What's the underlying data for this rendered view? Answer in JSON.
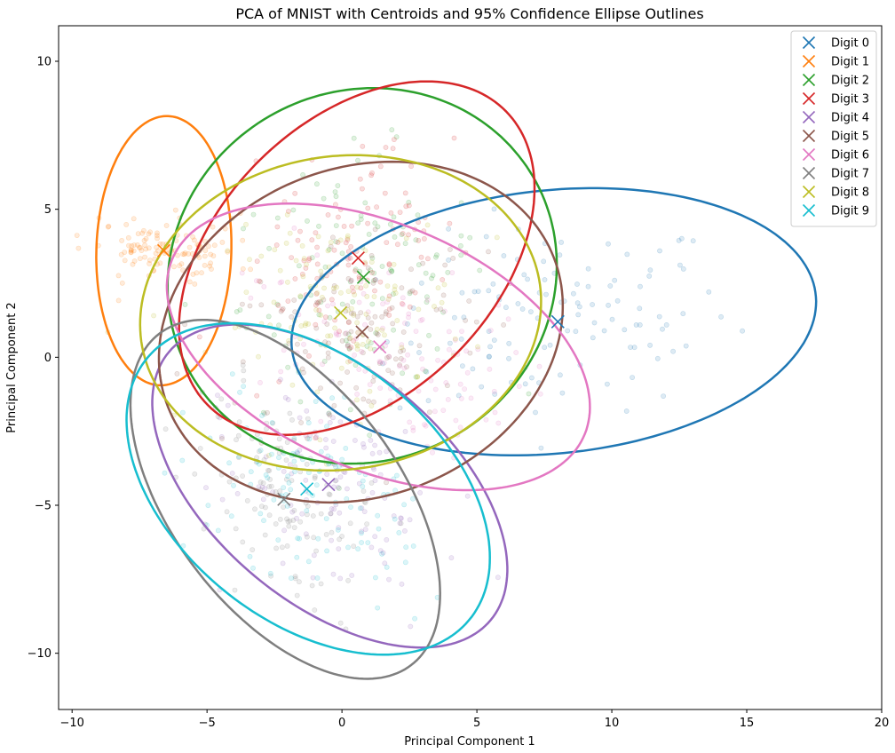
{
  "chart_data": {
    "type": "scatter",
    "title": "PCA of MNIST with Centroids and 95% Confidence Ellipse Outlines",
    "xlabel": "Principal Component 1",
    "ylabel": "Principal Component 2",
    "xlim": [
      -10.5,
      20
    ],
    "ylim": [
      -11.9,
      11.2
    ],
    "xticks": [
      -10,
      -5,
      0,
      5,
      10,
      15,
      20
    ],
    "yticks": [
      -10,
      -5,
      0,
      5,
      10
    ],
    "tick_labels_x": [
      "−10",
      "−5",
      "0",
      "5",
      "10",
      "15",
      "20"
    ],
    "tick_labels_y": [
      "−10",
      "−5",
      "0",
      "5",
      "10"
    ],
    "grid": false,
    "legend_position": "top-right",
    "series": [
      {
        "name": "Digit 0",
        "color": "#1f77b4",
        "centroid": [
          8.0,
          1.2
        ],
        "ellipse": {
          "center": [
            7.85,
            1.2
          ],
          "semi_major": 9.75,
          "semi_minor": 4.45,
          "angle_deg": 5
        },
        "spread": [
          3.2,
          1.6
        ]
      },
      {
        "name": "Digit 1",
        "color": "#ff7f0e",
        "centroid": [
          -6.6,
          3.6
        ],
        "ellipse": {
          "center": [
            -6.6,
            3.6
          ],
          "semi_major": 4.55,
          "semi_minor": 2.5,
          "angle_deg": 88
        },
        "spread": [
          0.5,
          1.4
        ]
      },
      {
        "name": "Digit 2",
        "color": "#2ca02c",
        "centroid": [
          0.8,
          2.7
        ],
        "ellipse": {
          "center": [
            0.75,
            2.75
          ],
          "semi_major": 7.25,
          "semi_minor": 6.3,
          "angle_deg": 12
        },
        "spread": [
          2.3,
          2.0
        ]
      },
      {
        "name": "Digit 3",
        "color": "#d62728",
        "centroid": [
          0.6,
          3.35
        ],
        "ellipse": {
          "center": [
            0.55,
            3.35
          ],
          "semi_major": 7.45,
          "semi_minor": 4.85,
          "angle_deg": 38
        },
        "spread": [
          2.2,
          1.5
        ]
      },
      {
        "name": "Digit 4",
        "color": "#9467bd",
        "centroid": [
          -0.5,
          -4.3
        ],
        "ellipse": {
          "center": [
            -0.45,
            -4.35
          ],
          "semi_major": 7.5,
          "semi_minor": 4.1,
          "angle_deg": -35
        },
        "spread": [
          2.2,
          1.3
        ]
      },
      {
        "name": "Digit 5",
        "color": "#8c564b",
        "centroid": [
          0.75,
          0.85
        ],
        "ellipse": {
          "center": [
            0.7,
            0.85
          ],
          "semi_major": 7.6,
          "semi_minor": 5.6,
          "angle_deg": 15
        },
        "spread": [
          2.4,
          1.8
        ]
      },
      {
        "name": "Digit 6",
        "color": "#e377c2",
        "centroid": [
          1.4,
          0.35
        ],
        "ellipse": {
          "center": [
            1.35,
            0.35
          ],
          "semi_major": 8.2,
          "semi_minor": 4.2,
          "angle_deg": -20
        },
        "spread": [
          2.6,
          1.4
        ]
      },
      {
        "name": "Digit 7",
        "color": "#7f7f7f",
        "centroid": [
          -2.15,
          -4.8
        ],
        "ellipse": {
          "center": [
            -2.1,
            -4.8
          ],
          "semi_major": 7.3,
          "semi_minor": 4.05,
          "angle_deg": -48
        },
        "spread": [
          2.1,
          1.3
        ]
      },
      {
        "name": "Digit 8",
        "color": "#bcbd22",
        "centroid": [
          -0.05,
          1.5
        ],
        "ellipse": {
          "center": [
            -0.05,
            1.5
          ],
          "semi_major": 7.45,
          "semi_minor": 5.3,
          "angle_deg": 6
        },
        "spread": [
          2.3,
          1.6
        ]
      },
      {
        "name": "Digit 9",
        "color": "#17becf",
        "centroid": [
          -1.3,
          -4.45
        ],
        "ellipse": {
          "center": [
            -1.25,
            -4.45
          ],
          "semi_major": 7.45,
          "semi_minor": 4.6,
          "angle_deg": -33
        },
        "spread": [
          2.2,
          1.4
        ]
      }
    ]
  }
}
